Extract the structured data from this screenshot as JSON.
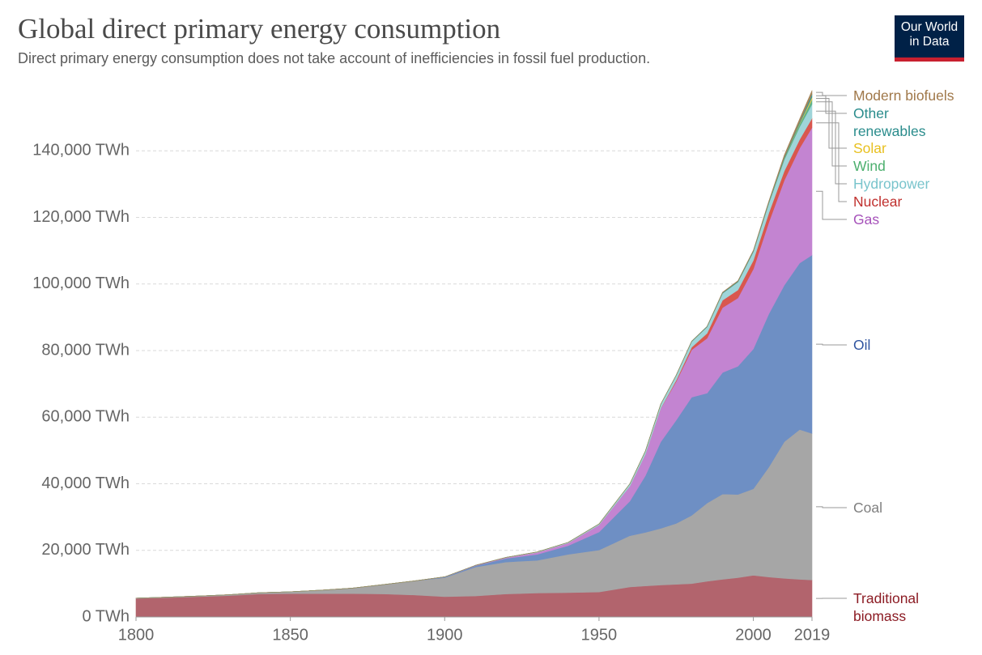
{
  "chart_data": {
    "type": "area",
    "title": "Global direct primary energy consumption",
    "subtitle": "Direct primary energy consumption does not take account of inefficiencies in fossil fuel production.",
    "logo": "Our World in Data",
    "stacked": true,
    "grid": true,
    "x": [
      1800,
      1810,
      1820,
      1830,
      1840,
      1850,
      1860,
      1870,
      1880,
      1890,
      1900,
      1910,
      1920,
      1930,
      1940,
      1950,
      1960,
      1965,
      1970,
      1975,
      1980,
      1985,
      1990,
      1995,
      2000,
      2005,
      2010,
      2015,
      2019
    ],
    "xlim": [
      1800,
      2019
    ],
    "xticks": [
      1800,
      1850,
      1900,
      1950,
      2000,
      2019
    ],
    "ylim": [
      0,
      160000
    ],
    "yticks": [
      {
        "value": 0,
        "label": "0 TWh"
      },
      {
        "value": 20000,
        "label": "20,000 TWh"
      },
      {
        "value": 40000,
        "label": "40,000 TWh"
      },
      {
        "value": 60000,
        "label": "60,000 TWh"
      },
      {
        "value": 80000,
        "label": "80,000 TWh"
      },
      {
        "value": 100000,
        "label": "100,000 TWh"
      },
      {
        "value": 120000,
        "label": "120,000 TWh"
      },
      {
        "value": 140000,
        "label": "140,000 TWh"
      }
    ],
    "series": [
      {
        "name": "Traditional biomass",
        "color": "#b2646d",
        "label_color": "#8c1c24",
        "values": [
          5556,
          5800,
          6100,
          6400,
          6900,
          7000,
          7000,
          7000,
          6900,
          6600,
          6100,
          6300,
          6900,
          7200,
          7300,
          7500,
          9000,
          9300,
          9600,
          9800,
          10000,
          10700,
          11300,
          11800,
          12500,
          12000,
          11600,
          11300,
          11100
        ]
      },
      {
        "name": "Coal",
        "color": "#a6a6a6",
        "label_color": "#7f7f7f",
        "values": [
          97,
          130,
          180,
          270,
          380,
          570,
          1050,
          1650,
          2800,
          4200,
          5700,
          8700,
          9600,
          9800,
          11500,
          12600,
          15400,
          16100,
          17000,
          18300,
          20500,
          23500,
          25600,
          25000,
          26000,
          33000,
          41000,
          45000,
          44000
        ]
      },
      {
        "name": "Oil",
        "color": "#6e8fc4",
        "label_color": "#2f54a0",
        "values": [
          0,
          0,
          0,
          0,
          0,
          0,
          0,
          0,
          0,
          0,
          180,
          380,
          1100,
          1800,
          2600,
          5400,
          10400,
          17000,
          26000,
          31000,
          35500,
          33000,
          36500,
          38500,
          42000,
          46000,
          47000,
          50000,
          53600
        ]
      },
      {
        "name": "Gas",
        "color": "#c384d1",
        "label_color": "#a652ba",
        "values": [
          0,
          0,
          0,
          0,
          0,
          0,
          0,
          0,
          0,
          0,
          64,
          130,
          230,
          570,
          800,
          2100,
          4500,
          6400,
          10000,
          11600,
          14200,
          16500,
          19500,
          20500,
          24000,
          27500,
          31500,
          34500,
          38300
        ]
      },
      {
        "name": "Nuclear",
        "color": "#d9574e",
        "label_color": "#c0302e",
        "values": [
          0,
          0,
          0,
          0,
          0,
          0,
          0,
          0,
          0,
          0,
          0,
          0,
          0,
          0,
          0,
          0,
          0,
          20,
          80,
          400,
          800,
          1500,
          2200,
          2400,
          2600,
          2800,
          2800,
          2600,
          2800
        ]
      },
      {
        "name": "Hydropower",
        "color": "#9fd5d9",
        "label_color": "#79c4cc",
        "values": [
          0,
          0,
          0,
          0,
          0,
          0,
          0,
          0,
          0,
          0,
          0,
          0,
          80,
          150,
          200,
          330,
          700,
          950,
          1200,
          1450,
          1700,
          1900,
          2100,
          2400,
          2600,
          2900,
          3400,
          3800,
          4200
        ]
      },
      {
        "name": "Wind",
        "color": "#5fb38a",
        "label_color": "#4caf6e",
        "values": [
          0,
          0,
          0,
          0,
          0,
          0,
          0,
          0,
          0,
          0,
          0,
          0,
          0,
          0,
          0,
          0,
          0,
          0,
          0,
          0,
          0,
          0,
          0,
          10,
          30,
          100,
          340,
          830,
          1400
        ]
      },
      {
        "name": "Solar",
        "color": "#f4c542",
        "label_color": "#e8c020",
        "values": [
          0,
          0,
          0,
          0,
          0,
          0,
          0,
          0,
          0,
          0,
          0,
          0,
          0,
          0,
          0,
          0,
          0,
          0,
          0,
          0,
          0,
          0,
          0,
          0,
          0,
          0,
          30,
          250,
          700
        ]
      },
      {
        "name": "Other renewables",
        "color": "#3a9a9a",
        "label_color": "#2a8c8c",
        "values": [
          0,
          0,
          0,
          0,
          0,
          0,
          0,
          0,
          0,
          0,
          0,
          0,
          0,
          0,
          0,
          0,
          0,
          20,
          40,
          70,
          100,
          150,
          190,
          220,
          250,
          300,
          350,
          450,
          900
        ]
      },
      {
        "name": "Modern biofuels",
        "color": "#a4855a",
        "label_color": "#a0784a",
        "values": [
          0,
          0,
          0,
          0,
          0,
          0,
          0,
          0,
          0,
          0,
          0,
          0,
          0,
          0,
          0,
          0,
          0,
          0,
          0,
          0,
          0,
          0,
          120,
          150,
          130,
          250,
          650,
          850,
          1100
        ]
      }
    ]
  }
}
